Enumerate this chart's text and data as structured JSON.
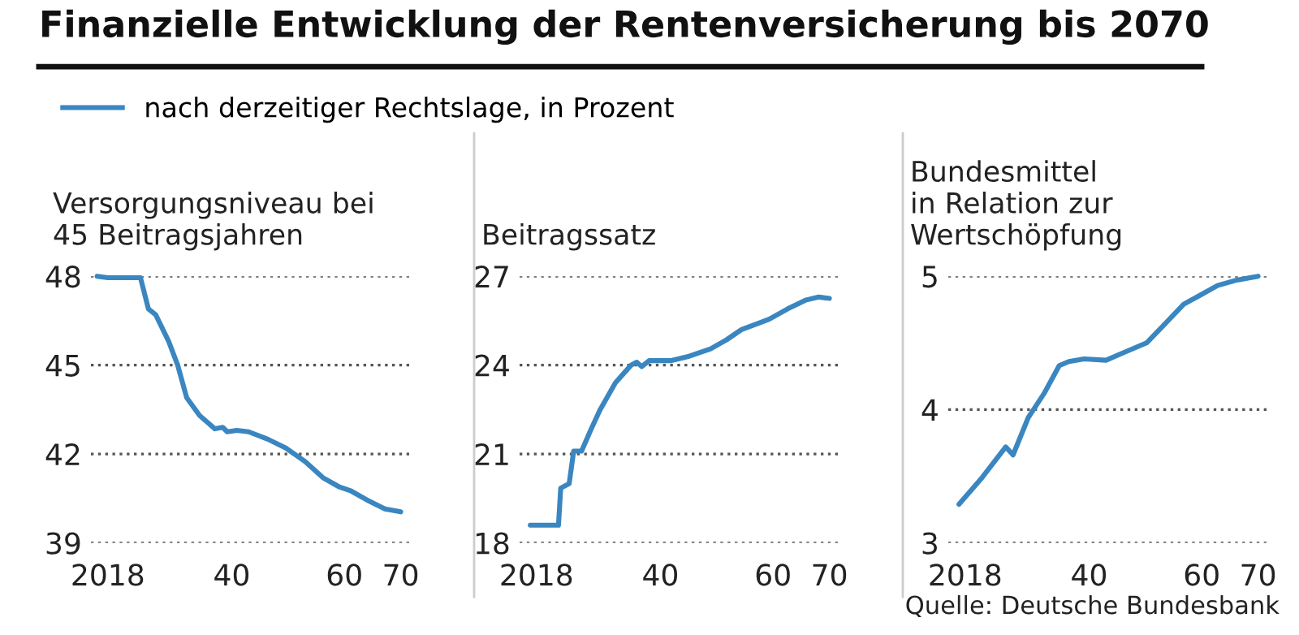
{
  "chart_data": [
    {
      "type": "line",
      "title": "Versorgungsniveau bei\n45 Beitragsjahren",
      "legend": "top right",
      "grid": "y",
      "line_style": "solid",
      "marker": "none",
      "xlim": [
        2015,
        2071.5
      ],
      "xticks": [
        {
          "value": 2018,
          "label": "2018"
        },
        {
          "value": 2040,
          "label": "40"
        },
        {
          "value": 2060,
          "label": "60"
        },
        {
          "value": 2070,
          "label": "70"
        }
      ],
      "ylim": [
        39,
        48
      ],
      "yticks": [
        39,
        42,
        45,
        48
      ],
      "annotations": [
        "Finanzielle Entwicklung der Rentenversicherung bis 2070"
      ],
      "series": [
        {
          "name": "nach derzeitiger Rechtslage, in Prozent",
          "color": "#3a86c0",
          "x": [
            2016.1,
            2018,
            2023.8,
            2025.2,
            2026.5,
            2028.8,
            2030.4,
            2032,
            2034.3,
            2037,
            2038.4,
            2039.2,
            2040.9,
            2043,
            2046.4,
            2049.6,
            2053,
            2056.2,
            2059,
            2061.2,
            2064,
            2067.2,
            2070
          ],
          "values": [
            48.0,
            47.95,
            47.95,
            46.9,
            46.7,
            45.8,
            45.0,
            43.9,
            43.3,
            42.85,
            42.9,
            42.75,
            42.8,
            42.75,
            42.5,
            42.2,
            41.75,
            41.2,
            40.9,
            40.75,
            40.45,
            40.15,
            40.05
          ]
        }
      ]
    },
    {
      "type": "line",
      "title": "Beitragssatz",
      "grid": "y",
      "line_style": "solid",
      "marker": "none",
      "xlim": [
        2015,
        2071.5
      ],
      "xticks": [
        {
          "value": 2018,
          "label": "2018"
        },
        {
          "value": 2040,
          "label": "40"
        },
        {
          "value": 2060,
          "label": "60"
        },
        {
          "value": 2070,
          "label": "70"
        }
      ],
      "ylim": [
        18,
        27
      ],
      "yticks": [
        18,
        21,
        24,
        27
      ],
      "series": [
        {
          "color": "#3a86c0",
          "x": [
            2016.9,
            2021.9,
            2022.3,
            2023.8,
            2024.6,
            2026,
            2027.6,
            2029.3,
            2032,
            2034.8,
            2035.8,
            2036.7,
            2038,
            2041.8,
            2045.1,
            2048.9,
            2051.7,
            2054.4,
            2057.2,
            2059.3,
            2062.6,
            2065.9,
            2068.1,
            2070
          ],
          "values": [
            18.6,
            18.6,
            19.85,
            20.0,
            21.1,
            21.1,
            21.8,
            22.5,
            23.4,
            24.0,
            24.1,
            23.95,
            24.15,
            24.15,
            24.3,
            24.55,
            24.85,
            25.2,
            25.4,
            25.55,
            25.9,
            26.2,
            26.3,
            26.25
          ]
        }
      ]
    },
    {
      "type": "line",
      "title": "Bundesmittel\nin Relation zur\nWertschöpfung",
      "grid": "y",
      "line_style": "solid",
      "marker": "none",
      "xlim": [
        2015,
        2071.5
      ],
      "xticks": [
        {
          "value": 2018,
          "label": "2018"
        },
        {
          "value": 2040,
          "label": "40"
        },
        {
          "value": 2060,
          "label": "60"
        },
        {
          "value": 2070,
          "label": "70"
        }
      ],
      "ylim": [
        3,
        5
      ],
      "yticks": [
        3,
        4,
        5
      ],
      "annotations": [
        "Quelle: Deutsche Bundesbank"
      ],
      "series": [
        {
          "color": "#3a86c0",
          "x": [
            2016.9,
            2021,
            2025.2,
            2026.5,
            2029.2,
            2032,
            2034.7,
            2036.4,
            2039.1,
            2043,
            2046.3,
            2050.2,
            2053.4,
            2056.8,
            2059.4,
            2062.8,
            2066.1,
            2070
          ],
          "values": [
            3.29,
            3.49,
            3.72,
            3.66,
            3.94,
            4.12,
            4.33,
            4.36,
            4.38,
            4.37,
            4.43,
            4.5,
            4.64,
            4.79,
            4.85,
            4.93,
            4.97,
            5.0
          ]
        }
      ]
    }
  ]
}
